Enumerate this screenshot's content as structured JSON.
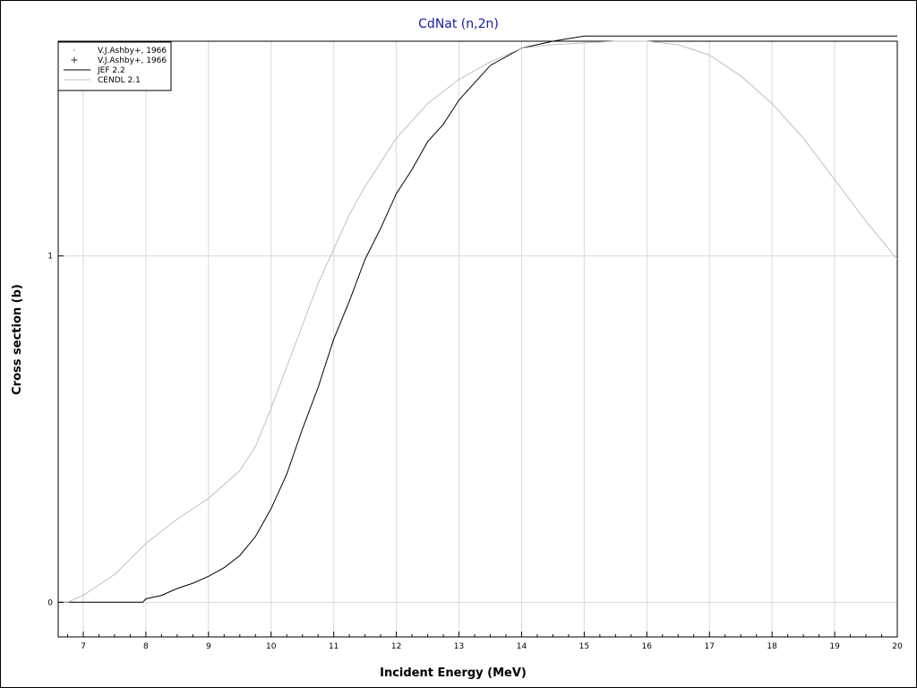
{
  "chart_data": {
    "type": "line",
    "title": "CdNat (n,2n)",
    "xlabel": "Incident Energy (MeV)",
    "ylabel": "Cross section (b)",
    "xlim": [
      6.6,
      20
    ],
    "ylim": [
      -0.1,
      1.62
    ],
    "x_ticks": [
      7,
      8,
      9,
      10,
      11,
      12,
      13,
      14,
      15,
      16,
      17,
      18,
      19,
      20
    ],
    "y_ticks": [
      0,
      1
    ],
    "x_minor_ticks": [
      6.75,
      7.25,
      7.5,
      7.75,
      8.25,
      8.5,
      8.75,
      9.25,
      9.5,
      9.75,
      10.25,
      10.5,
      10.75,
      11.25,
      11.5,
      11.75,
      12.25,
      12.5,
      12.75,
      13.25,
      13.5,
      13.75,
      14.25,
      14.5,
      14.75,
      15.25,
      15.5,
      15.75,
      16.25,
      16.5,
      16.75,
      17.25,
      17.5,
      17.75,
      18.25,
      18.5,
      18.75,
      19.25,
      19.5,
      19.75
    ],
    "grid": true,
    "legend_position": "top-left",
    "series": [
      {
        "name": "V.J.Ashby+, 1966",
        "kind": "points",
        "marker": "dot",
        "color": "#000000",
        "x": [],
        "y": []
      },
      {
        "name": "V.J.Ashby+, 1966",
        "kind": "points",
        "marker": "plus",
        "color": "#000000",
        "x": [],
        "y": []
      },
      {
        "name": "JEF 2.2",
        "kind": "line",
        "color": "#000000",
        "x": [
          6.6,
          7.95,
          8.0,
          8.25,
          8.5,
          8.75,
          9.0,
          9.25,
          9.5,
          9.75,
          10.0,
          10.25,
          10.5,
          10.75,
          11.0,
          11.25,
          11.5,
          11.75,
          12.0,
          12.25,
          12.5,
          12.75,
          13.0,
          13.25,
          13.5,
          14.0,
          14.5,
          15.0,
          20.0
        ],
        "y": [
          0.0,
          0.0,
          0.01,
          0.02,
          0.04,
          0.055,
          0.075,
          0.1,
          0.135,
          0.19,
          0.27,
          0.37,
          0.5,
          0.62,
          0.76,
          0.87,
          0.99,
          1.08,
          1.18,
          1.25,
          1.33,
          1.38,
          1.45,
          1.5,
          1.55,
          1.6,
          1.62,
          1.635,
          1.635
        ]
      },
      {
        "name": "CENDL 2.1",
        "kind": "line",
        "color": "#c0c0c0",
        "x": [
          6.6,
          6.75,
          7.0,
          7.5,
          8.0,
          8.5,
          9.0,
          9.5,
          9.75,
          10.0,
          10.25,
          10.5,
          10.75,
          11.0,
          11.25,
          11.5,
          11.75,
          12.0,
          12.5,
          13.0,
          13.5,
          14.0,
          14.5,
          15.0,
          15.5,
          16.0,
          16.5,
          17.0,
          17.5,
          18.0,
          18.5,
          19.0,
          19.5,
          20.0
        ],
        "y": [
          0.0,
          0.0,
          0.02,
          0.08,
          0.17,
          0.24,
          0.3,
          0.38,
          0.45,
          0.56,
          0.68,
          0.8,
          0.92,
          1.02,
          1.12,
          1.2,
          1.27,
          1.34,
          1.44,
          1.51,
          1.56,
          1.6,
          1.61,
          1.615,
          1.62,
          1.62,
          1.61,
          1.58,
          1.52,
          1.44,
          1.34,
          1.22,
          1.1,
          0.99
        ]
      }
    ]
  }
}
